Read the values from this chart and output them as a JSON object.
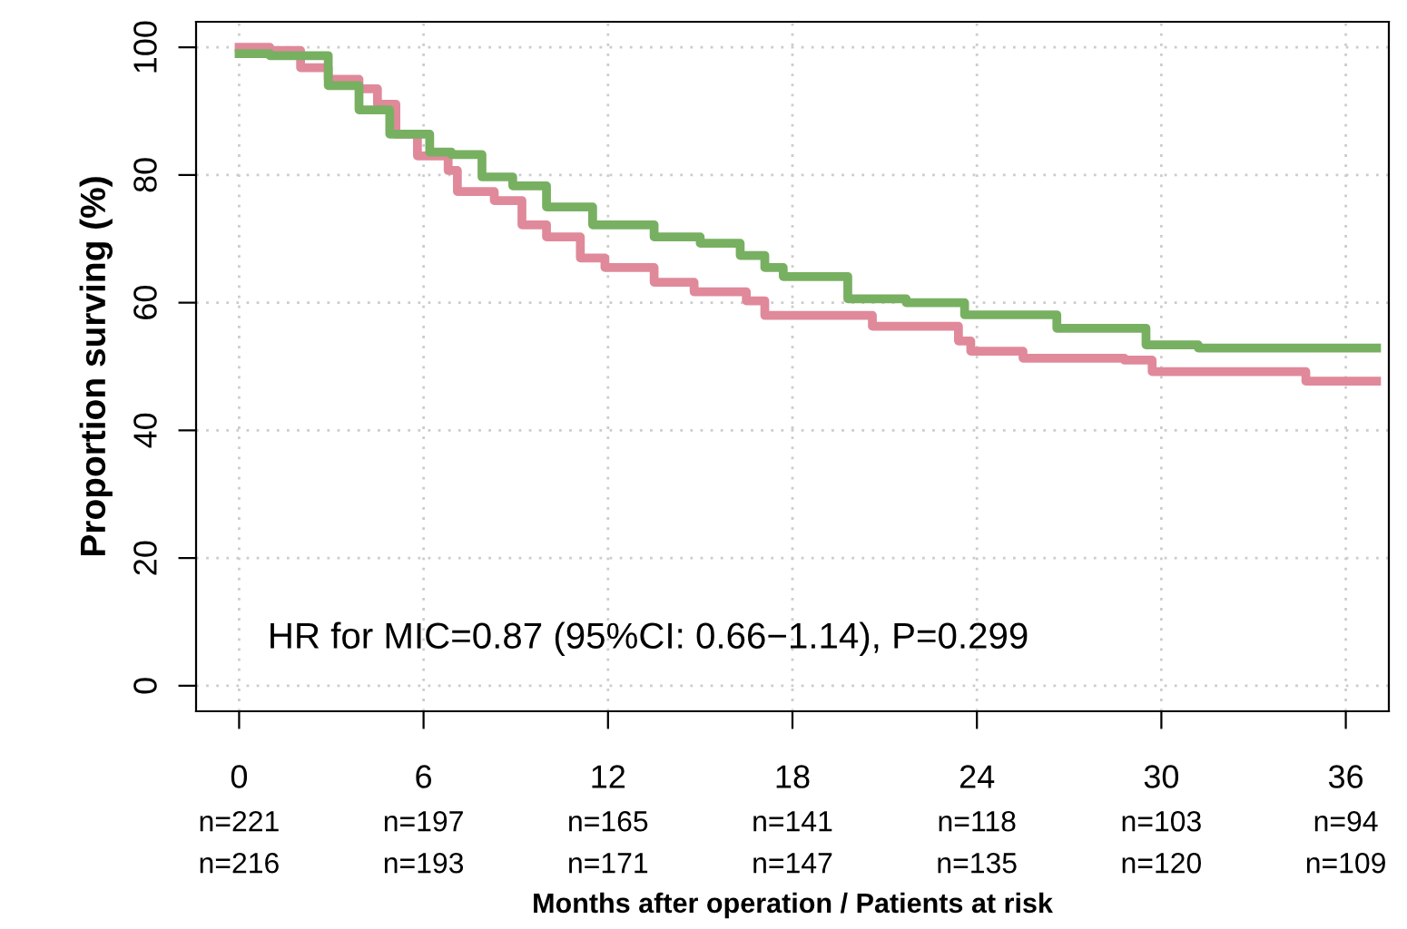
{
  "chart_data": {
    "type": "step",
    "ylabel": "Proportion surving (%)",
    "xlabel": "Months after operation / Patients at risk",
    "xlim": [
      -1.4,
      37.4
    ],
    "ylim": [
      -4,
      104
    ],
    "xticks": [
      0,
      6,
      12,
      18,
      24,
      30,
      36
    ],
    "yticks": [
      0,
      20,
      40,
      60,
      80,
      100
    ],
    "grid": true,
    "line_style": "solid",
    "annotations": [
      "HR for MIC=0.87 (95%CI: 0.66−1.14), P=0.299",
      "n=221",
      "n=197",
      "n=165",
      "n=141",
      "n=118",
      "n=103",
      "n=94",
      "n=216",
      "n=193",
      "n=171",
      "n=147",
      "n=135",
      "n=120",
      "n=109"
    ],
    "series": [
      {
        "color": "#e0899a",
        "x": [
          0,
          1,
          2,
          2.9,
          3.9,
          4.5,
          5.1,
          5.8,
          6.8,
          7.1,
          8.3,
          9.2,
          10,
          11.1,
          11.9,
          13.5,
          14.8,
          16.5,
          17.1,
          20.6,
          23.4,
          23.8,
          25.5,
          28.8,
          29.7,
          34.7,
          37
        ],
        "values": [
          100,
          99.5,
          96.8,
          95,
          93.5,
          91.1,
          86.4,
          83,
          80.7,
          77.4,
          76,
          72.2,
          70.3,
          67,
          65.5,
          63.2,
          61.7,
          60.3,
          58,
          56.3,
          54,
          52.4,
          51.3,
          51,
          49.2,
          47.7,
          47.7
        ]
      },
      {
        "color": "#77b061",
        "x": [
          0,
          1,
          2.9,
          3.9,
          4.9,
          6.2,
          6.9,
          7.9,
          8.9,
          10,
          11.5,
          13.5,
          15,
          16.3,
          17.1,
          17.7,
          19.8,
          21.7,
          23.6,
          26.6,
          29.5,
          31.2,
          37
        ],
        "values": [
          99,
          98.7,
          94,
          90.2,
          86.4,
          83.6,
          83.2,
          79.7,
          78.3,
          75,
          72.2,
          70.3,
          69.3,
          67.4,
          65.5,
          64.1,
          60.6,
          60,
          58.1,
          56,
          53.4,
          52.9,
          52.9
        ]
      }
    ]
  }
}
